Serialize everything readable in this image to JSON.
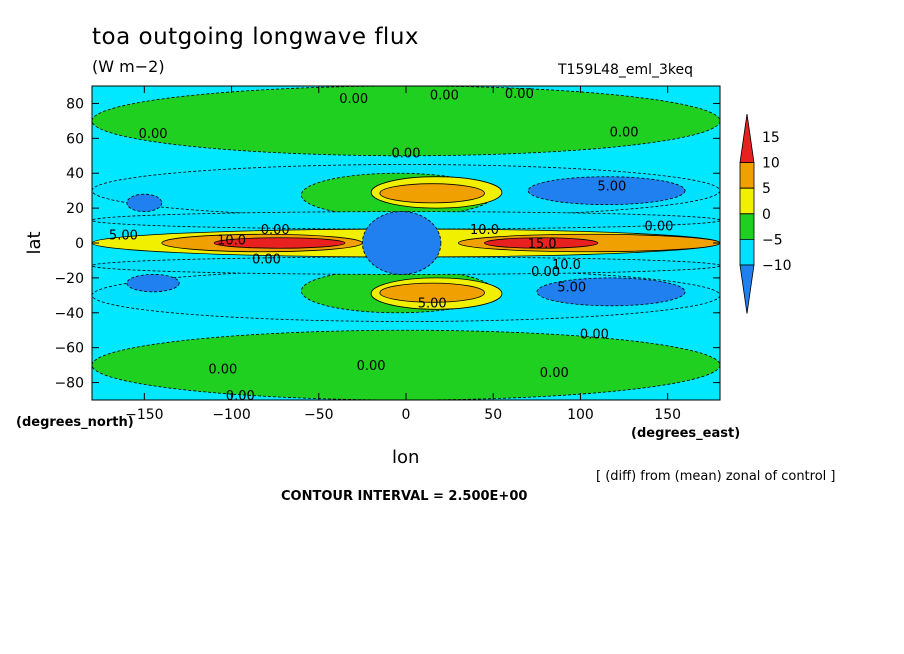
{
  "chart_data": {
    "type": "heatmap",
    "title": "toa outgoing longwave flux",
    "units": "(W m−2)",
    "run_label": "T159L48_eml_3keq",
    "xlabel": "lon",
    "ylabel": "lat",
    "x_unit_label": "(degrees_east)",
    "y_unit_label": "(degrees_north)",
    "xlim": [
      -180,
      180
    ],
    "ylim": [
      -90,
      90
    ],
    "x_ticks": [
      -150,
      -100,
      -50,
      0,
      50,
      100,
      150
    ],
    "y_ticks": [
      80,
      60,
      40,
      20,
      0,
      -20,
      -40,
      -60,
      -80
    ],
    "colorbar": {
      "levels": [
        15,
        10,
        5,
        0,
        -5,
        -10
      ],
      "bands": [
        {
          "from": 10,
          "to": 15,
          "color": "#e82020"
        },
        {
          "from": 5,
          "to": 10,
          "color": "#f0a000"
        },
        {
          "from": 0,
          "to": 5,
          "color": "#f0f000"
        },
        {
          "from": -5,
          "to": 0,
          "color": "#20d020"
        },
        {
          "from": -10,
          "to": -5,
          "color": "#00e0ff"
        },
        {
          "from": -15,
          "to": -10,
          "color": "#2080f0"
        }
      ],
      "background_color": "#00e8ff"
    },
    "contour_labels": [
      {
        "text": "0.00",
        "lon": -30,
        "lat": 83
      },
      {
        "text": "0.00",
        "lon": 22,
        "lat": 85
      },
      {
        "text": "0.00",
        "lon": 65,
        "lat": 86
      },
      {
        "text": "0.00",
        "lon": -145,
        "lat": 63
      },
      {
        "text": "0.00",
        "lon": 0,
        "lat": 52
      },
      {
        "text": "0.00",
        "lon": 125,
        "lat": 64
      },
      {
        "text": "5.00",
        "lon": 118,
        "lat": 33
      },
      {
        "text": "0.00",
        "lon": 145,
        "lat": 10
      },
      {
        "text": "5.00",
        "lon": -162,
        "lat": 5
      },
      {
        "text": "10.0",
        "lon": -100,
        "lat": 2
      },
      {
        "text": "10.0",
        "lon": 45,
        "lat": 8
      },
      {
        "text": "15.0",
        "lon": 78,
        "lat": 0
      },
      {
        "text": "0.00",
        "lon": -75,
        "lat": 8
      },
      {
        "text": "0.00",
        "lon": -80,
        "lat": -9
      },
      {
        "text": "10.0",
        "lon": 92,
        "lat": -12
      },
      {
        "text": "0.00",
        "lon": 80,
        "lat": -16
      },
      {
        "text": "5.00",
        "lon": 95,
        "lat": -25
      },
      {
        "text": "5.00",
        "lon": 15,
        "lat": -34
      },
      {
        "text": "0.00",
        "lon": 108,
        "lat": -52
      },
      {
        "text": "0.00",
        "lon": -105,
        "lat": -72
      },
      {
        "text": "0.00",
        "lon": -20,
        "lat": -70
      },
      {
        "text": "0.00",
        "lon": 85,
        "lat": -74
      },
      {
        "text": "0.00",
        "lon": -95,
        "lat": -87
      }
    ],
    "regions": [
      {
        "value": -2.5,
        "lon": [
          -180,
          180
        ],
        "lat": [
          50,
          90
        ]
      },
      {
        "value": -2.5,
        "lon": [
          -180,
          180
        ],
        "lat": [
          -90,
          -50
        ]
      },
      {
        "value": -6,
        "lon": [
          -180,
          180
        ],
        "lat": [
          15,
          45
        ]
      },
      {
        "value": -6,
        "lon": [
          -180,
          180
        ],
        "lat": [
          -45,
          -15
        ]
      },
      {
        "value": -2.5,
        "lon": [
          -60,
          50
        ],
        "lat": [
          15,
          40
        ]
      },
      {
        "value": -2.5,
        "lon": [
          -60,
          50
        ],
        "lat": [
          -40,
          -15
        ]
      },
      {
        "value": -8,
        "lon": [
          -180,
          180
        ],
        "lat": [
          8,
          18
        ]
      },
      {
        "value": -8,
        "lon": [
          -180,
          180
        ],
        "lat": [
          -18,
          -8
        ]
      },
      {
        "value": -11,
        "lon": [
          70,
          160
        ],
        "lat": [
          22,
          38
        ]
      },
      {
        "value": -11,
        "lon": [
          75,
          160
        ],
        "lat": [
          -36,
          -20
        ]
      },
      {
        "value": -11,
        "lon": [
          -160,
          -140
        ],
        "lat": [
          18,
          28
        ]
      },
      {
        "value": -11,
        "lon": [
          -160,
          -130
        ],
        "lat": [
          -28,
          -18
        ]
      },
      {
        "value": 2.5,
        "lon": [
          -180,
          180
        ],
        "lat": [
          -8,
          8
        ]
      },
      {
        "value": 7.5,
        "lon": [
          -140,
          -25
        ],
        "lat": [
          -5,
          5
        ]
      },
      {
        "value": 7.5,
        "lon": [
          30,
          180
        ],
        "lat": [
          -5,
          5
        ]
      },
      {
        "value": 12,
        "lon": [
          -110,
          -35
        ],
        "lat": [
          -3,
          3
        ]
      },
      {
        "value": 12,
        "lon": [
          45,
          110
        ],
        "lat": [
          -3,
          3
        ]
      },
      {
        "value": 2.5,
        "lon": [
          -20,
          55
        ],
        "lat": [
          20,
          38
        ]
      },
      {
        "value": 7.5,
        "lon": [
          -15,
          45
        ],
        "lat": [
          23,
          34
        ]
      },
      {
        "value": 2.5,
        "lon": [
          -20,
          55
        ],
        "lat": [
          -38,
          -20
        ]
      },
      {
        "value": 7.5,
        "lon": [
          -15,
          45
        ],
        "lat": [
          -34,
          -23
        ]
      },
      {
        "value": -12,
        "lon": [
          -25,
          20
        ],
        "lat": [
          -18,
          18
        ]
      }
    ]
  },
  "labels": {
    "x_unit": "(degrees_east)",
    "y_unit": "(degrees_north)",
    "note": "[ (diff) from (mean) zonal of control ]",
    "contour_interval": "CONTOUR INTERVAL = 2.500E+00"
  }
}
